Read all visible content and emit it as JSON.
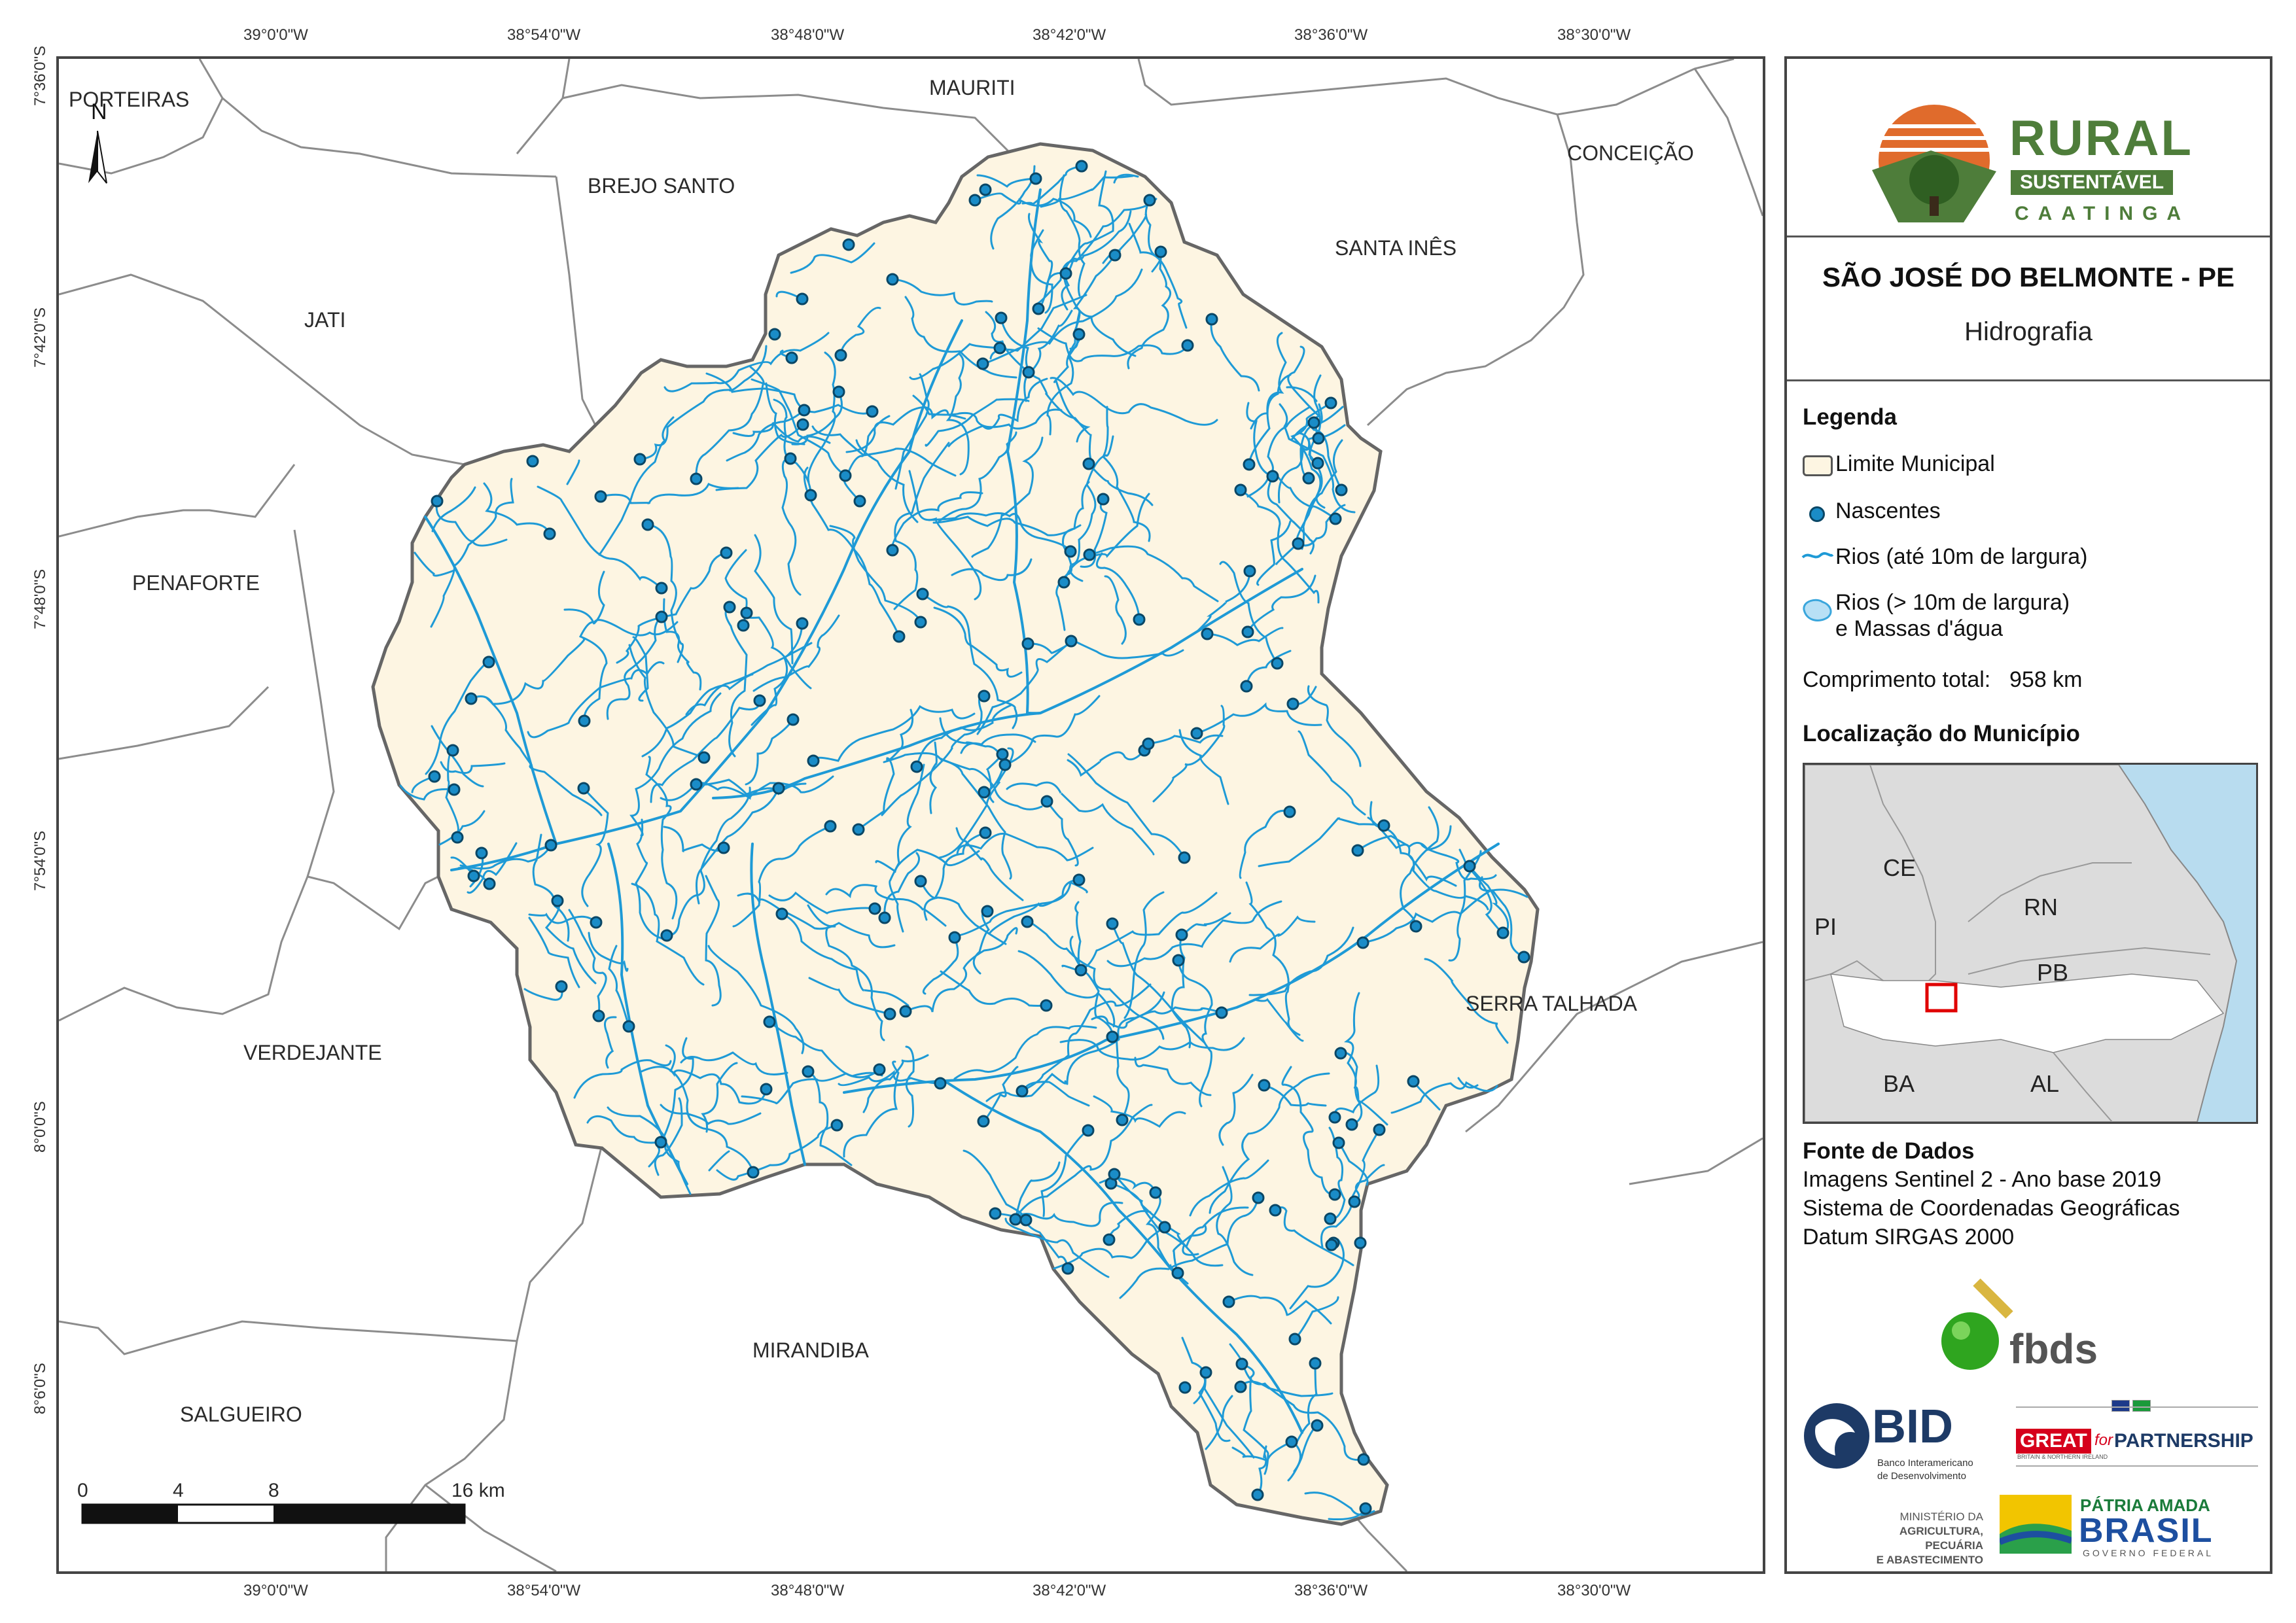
{
  "map": {
    "top_lon_labels": [
      "39°0'0\"W",
      "38°54'0\"W",
      "38°48'0\"W",
      "38°42'0\"W",
      "38°36'0\"W",
      "38°30'0\"W"
    ],
    "bottom_lon_labels": [
      "39°0'0\"W",
      "38°54'0\"W",
      "38°48'0\"W",
      "38°42'0\"W",
      "38°36'0\"W",
      "38°30'0\"W"
    ],
    "lat_labels": [
      "7°36'0\"S",
      "7°42'0\"S",
      "7°48'0\"S",
      "7°54'0\"S",
      "8°0'0\"S",
      "8°6'0\"S"
    ],
    "north_label": "N",
    "neighbors": [
      "PORTEIRAS",
      "MAURITI",
      "CONCEIÇÃO",
      "BREJO SANTO",
      "SANTA INÊS",
      "JATI",
      "PENAFORTE",
      "SERRA TALHADA",
      "VERDEJANTE",
      "MIRANDIBA",
      "SALGUEIRO"
    ],
    "scale_bar": {
      "labels": [
        "0",
        "4",
        "8",
        "16 km"
      ]
    },
    "colors": {
      "municipality_fill": "#fdf5e2",
      "municipality_border": "#666666",
      "river": "#1e9ad6",
      "spring": "#1a8cc7",
      "background": "#ffffff",
      "neighbor_border": "#8c8c8c"
    }
  },
  "panel": {
    "logo": {
      "line1": "RURAL",
      "line2": "SUSTENTÁVEL",
      "line3": "CAATINGA"
    },
    "title": "SÃO JOSÉ DO BELMONTE - PE",
    "subtitle": "Hidrografia",
    "legend": {
      "heading": "Legenda",
      "items": [
        "Limite Municipal",
        "Nascentes",
        "Rios (até 10m de largura)",
        "Rios (> 10m de largura)",
        "e Massas d'água"
      ],
      "total_length_label": "Comprimento total:",
      "total_length_value": "958 km"
    },
    "location": {
      "heading": "Localização do Município",
      "states": [
        "CE",
        "RN",
        "PI",
        "PB",
        "BA",
        "AL"
      ]
    },
    "sources": {
      "heading": "Fonte de Dados",
      "lines": [
        "Imagens Sentinel 2 - Ano base 2019",
        "Sistema de Coordenadas Geográficas",
        "Datum SIRGAS 2000"
      ]
    },
    "logos": {
      "fbds": "fbds",
      "bid": "BID",
      "bid_sub1": "Banco Interamericano",
      "bid_sub2": "de Desenvolvimento",
      "great": "GREAT",
      "great_for": "for",
      "great_partnership": "PARTNERSHIP",
      "great_small": "BRITAIN & NORTHERN IRELAND",
      "ministry1": "MINISTÉRIO DA",
      "ministry2": "AGRICULTURA, PECUÁRIA",
      "ministry3": "E ABASTECIMENTO",
      "patria": "PÁTRIA AMADA",
      "brasil": "BRASIL",
      "governo": "GOVERNO FEDERAL"
    }
  }
}
